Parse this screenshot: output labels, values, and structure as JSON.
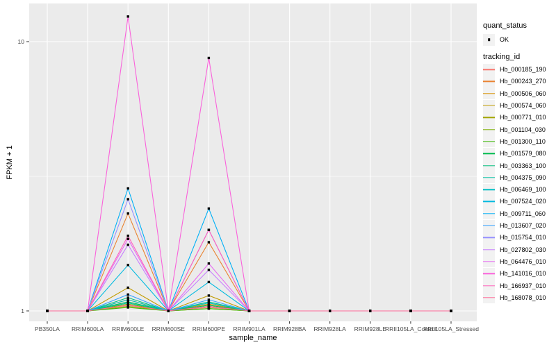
{
  "chart_data": {
    "type": "line",
    "title": "",
    "xlabel": "sample_name",
    "ylabel": "FPKM + 1",
    "y_scale": "log10",
    "y_ticks": [
      1,
      10
    ],
    "y_tick_labels": [
      "1",
      "10"
    ],
    "y_minor_ticks": [
      3.16
    ],
    "ylim": [
      0.97,
      13.9
    ],
    "grid": true,
    "legend_position": "right",
    "categories": [
      "PB350LA",
      "RRIM600LA",
      "RRIM600LE",
      "RRIM600SE",
      "RRIM600PE",
      "RRIM901LA",
      "RRIM928BA",
      "RRIM928LA",
      "RRIM928LE",
      "RRII105LA_Control",
      "RRII105LA_Stressed"
    ],
    "series": [
      {
        "name": "Hb_000185_190",
        "color": "#F8766D",
        "values": [
          1,
          1,
          1.05,
          1,
          1.03,
          1,
          1,
          1,
          1,
          1,
          1
        ]
      },
      {
        "name": "Hb_000243_270",
        "color": "#EA8331",
        "values": [
          1,
          1,
          2.3,
          1,
          1.8,
          1,
          1,
          1,
          1,
          1,
          1
        ]
      },
      {
        "name": "Hb_000506_060",
        "color": "#D89000",
        "values": [
          1,
          1,
          1.1,
          1,
          1.06,
          1,
          1,
          1,
          1,
          1,
          1
        ]
      },
      {
        "name": "Hb_000574_060",
        "color": "#C09B00",
        "values": [
          1,
          1,
          1.22,
          1,
          1.14,
          1,
          1,
          1,
          1,
          1,
          1
        ]
      },
      {
        "name": "Hb_000771_010",
        "color": "#A3A500",
        "values": [
          1,
          1,
          1.04,
          1,
          1.02,
          1,
          1,
          1,
          1,
          1,
          1
        ]
      },
      {
        "name": "Hb_001104_030",
        "color": "#7CAE00",
        "values": [
          1,
          1,
          1.06,
          1,
          1.04,
          1,
          1,
          1,
          1,
          1,
          1
        ]
      },
      {
        "name": "Hb_001300_110",
        "color": "#39B600",
        "values": [
          1,
          1,
          1.03,
          1,
          1.02,
          1,
          1,
          1,
          1,
          1,
          1
        ]
      },
      {
        "name": "Hb_001579_080",
        "color": "#00BB4E",
        "values": [
          1,
          1,
          1.08,
          1,
          1.05,
          1,
          1,
          1,
          1,
          1,
          1
        ]
      },
      {
        "name": "Hb_003363_100",
        "color": "#00BF7D",
        "values": [
          1,
          1,
          1.12,
          1,
          1.08,
          1,
          1,
          1,
          1,
          1,
          1
        ]
      },
      {
        "name": "Hb_004375_090",
        "color": "#00C1A3",
        "values": [
          1,
          1,
          1.07,
          1,
          1.04,
          1,
          1,
          1,
          1,
          1,
          1
        ]
      },
      {
        "name": "Hb_006469_100",
        "color": "#00BFC4",
        "values": [
          1,
          1,
          1.1,
          1,
          1.07,
          1,
          1,
          1,
          1,
          1,
          1
        ]
      },
      {
        "name": "Hb_007524_020",
        "color": "#00BAE0",
        "values": [
          1,
          1,
          1.48,
          1,
          1.28,
          1,
          1,
          1,
          1,
          1,
          1
        ]
      },
      {
        "name": "Hb_009711_060",
        "color": "#00B0F6",
        "values": [
          1,
          1,
          2.85,
          1,
          2.4,
          1,
          1,
          1,
          1,
          1,
          1
        ]
      },
      {
        "name": "Hb_013607_020",
        "color": "#35A2FF",
        "values": [
          1,
          1,
          1.15,
          1,
          1.1,
          1,
          1,
          1,
          1,
          1,
          1
        ]
      },
      {
        "name": "Hb_015754_010",
        "color": "#9590FF",
        "values": [
          1,
          1,
          2.6,
          1,
          2.0,
          1,
          1,
          1,
          1,
          1,
          1
        ]
      },
      {
        "name": "Hb_027802_030",
        "color": "#C77CFF",
        "values": [
          1,
          1,
          1.76,
          1,
          1.42,
          1,
          1,
          1,
          1,
          1,
          1
        ]
      },
      {
        "name": "Hb_064476_010",
        "color": "#E76BF3",
        "values": [
          1,
          1,
          1.85,
          1,
          1.5,
          1,
          1,
          1,
          1,
          1,
          1
        ]
      },
      {
        "name": "Hb_141016_010",
        "color": "#FA62DB",
        "values": [
          1,
          1,
          12.4,
          1,
          8.7,
          1,
          1,
          1,
          1,
          1,
          1
        ]
      },
      {
        "name": "Hb_166937_010",
        "color": "#FF62BC",
        "values": [
          1,
          1,
          1.9,
          1,
          2.0,
          1,
          1,
          1,
          1,
          1,
          1
        ]
      },
      {
        "name": "Hb_168078_010",
        "color": "#FF6A98",
        "values": [
          1,
          1,
          1.05,
          1,
          1.04,
          1,
          1,
          1,
          1,
          1,
          1
        ]
      }
    ],
    "points": {
      "shape": "square",
      "color": "#000000",
      "status": "OK"
    }
  },
  "legend": {
    "quant_status": {
      "title": "quant_status",
      "ok_label": "OK"
    },
    "tracking_id": {
      "title": "tracking_id"
    }
  },
  "colors": {
    "panel_bg": "#EBEBEB",
    "grid": "#FFFFFF",
    "tick_mark": "#333333",
    "tick_label": "#4D4D4D",
    "axis_title": "#000000",
    "legend_key_bg": "#F2F2F2",
    "point": "#000000"
  }
}
